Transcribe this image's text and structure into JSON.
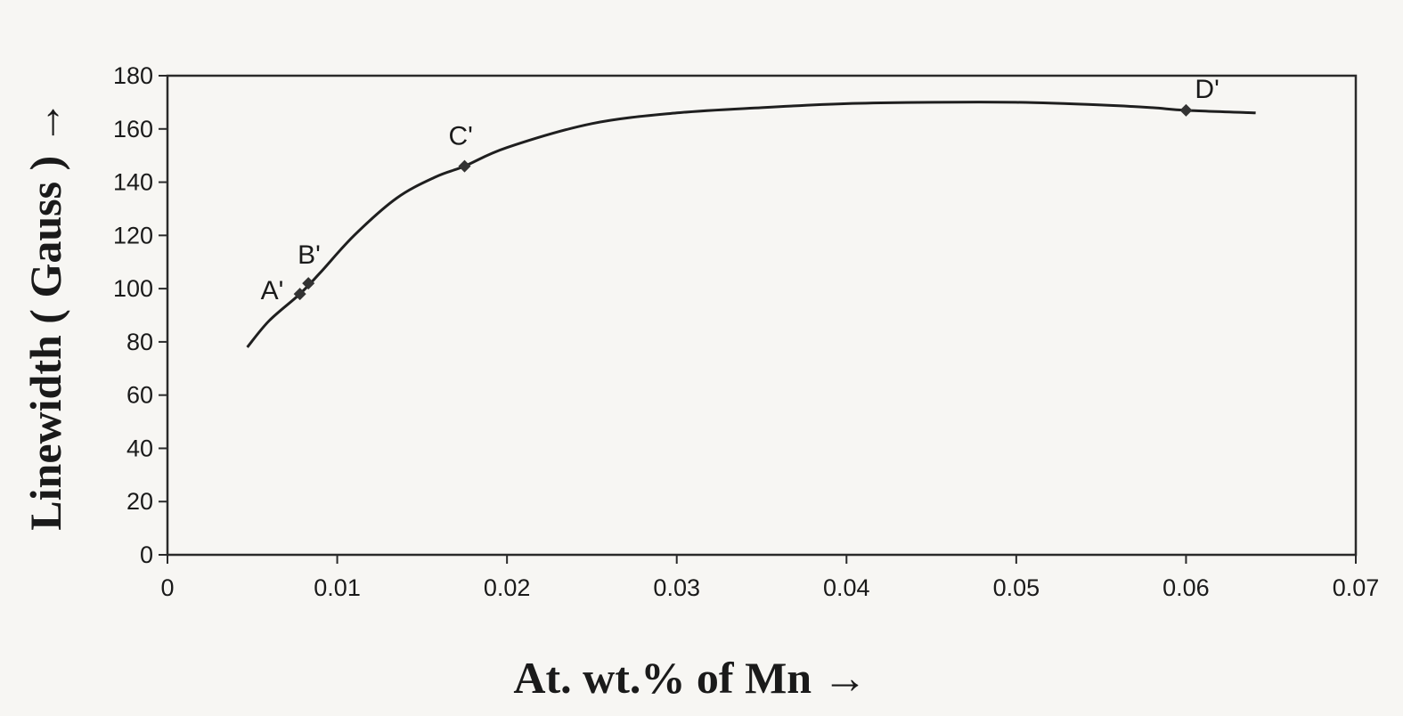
{
  "chart_data": {
    "type": "line",
    "title": "",
    "xlabel": "At. wt.% of Mn  →",
    "ylabel": "Linewidth ( Gauss ) →",
    "xlim": [
      0,
      0.07
    ],
    "ylim": [
      0,
      180
    ],
    "x_ticks": [
      "0",
      "0.01",
      "0.02",
      "0.03",
      "0.04",
      "0.05",
      "0.06",
      "0.07"
    ],
    "y_ticks": [
      "0",
      "20",
      "40",
      "60",
      "80",
      "100",
      "120",
      "140",
      "160",
      "180"
    ],
    "grid": false,
    "legend": "none",
    "series": [
      {
        "curve_x": [
          0.0047,
          0.006,
          0.0078,
          0.009,
          0.011,
          0.0135,
          0.0158,
          0.0175,
          0.02,
          0.025,
          0.03,
          0.035,
          0.04,
          0.045,
          0.05,
          0.055,
          0.058,
          0.06,
          0.0641
        ],
        "curve_y": [
          78,
          88,
          98,
          106,
          120,
          134,
          142,
          146,
          153,
          162,
          166,
          168,
          169.5,
          170,
          170,
          169,
          168,
          167,
          166
        ],
        "points": [
          {
            "label": "A'",
            "x": 0.0078,
            "y": 98
          },
          {
            "label": "B'",
            "x": 0.0083,
            "y": 102
          },
          {
            "label": "C'",
            "x": 0.0175,
            "y": 146
          },
          {
            "label": "D'",
            "x": 0.06,
            "y": 167
          }
        ]
      }
    ],
    "colors": {
      "line": "#1f1f1f",
      "marker": "#333333",
      "background": "#f7f6f3"
    }
  }
}
